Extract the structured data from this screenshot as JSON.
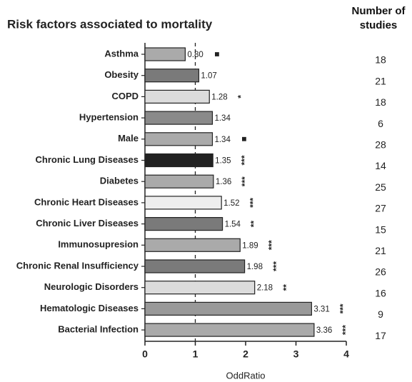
{
  "chart_data": {
    "type": "bar",
    "orientation": "horizontal",
    "title": "Risk factors associated to mortality",
    "x_label": "OddRatio",
    "studies_label": "Number of studies",
    "categories": [
      "Asthma",
      "Obesity",
      "COPD",
      "Hypertension",
      "Male",
      "Chronic Lung Diseases",
      "Diabetes",
      "Chronic Heart Diseases",
      "Chronic Liver Diseases",
      "Immunosupresion",
      "Chronic Renal Insufficiency",
      "Neurologic Disorders",
      "Hematologic Diseases",
      "Bacterial Infection"
    ],
    "values": [
      0.8,
      1.07,
      1.28,
      1.34,
      1.34,
      1.35,
      1.36,
      1.52,
      1.54,
      1.89,
      1.98,
      2.18,
      3.31,
      3.36
    ],
    "value_labels": [
      "0.80",
      "1.07",
      "1.28",
      "1.34",
      "1.34",
      "1.35",
      "1.36",
      "1.52",
      "1.54",
      "1.89",
      "1.98",
      "2.18",
      "3.31",
      "3.36"
    ],
    "colors": [
      "#aaaaaa",
      "#7a7a7a",
      "#dcdcdc",
      "#8a8a8a",
      "#aaaaaa",
      "#222222",
      "#aaaaaa",
      "#eeeeee",
      "#7a7a7a",
      "#aaaaaa",
      "#7a7a7a",
      "#dcdcdc",
      "#999999",
      "#aaaaaa"
    ],
    "significance": [
      "■",
      null,
      "*",
      null,
      "■",
      "***",
      "***",
      "***",
      "**",
      "***",
      "***",
      "**",
      "***",
      "***"
    ],
    "studies": [
      18,
      21,
      18,
      6,
      28,
      14,
      25,
      27,
      15,
      21,
      26,
      16,
      9,
      17
    ],
    "xlim": [
      0,
      4
    ],
    "xticks": [
      0,
      1,
      2,
      3,
      4
    ],
    "reference_line": 1
  }
}
